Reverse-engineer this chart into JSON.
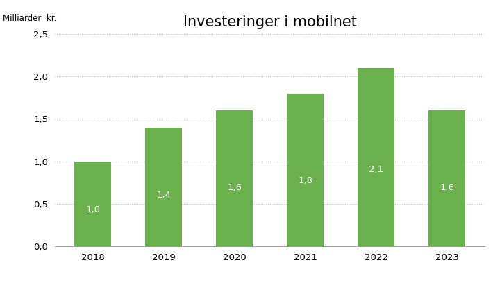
{
  "title": "Investeringer i mobilnet",
  "ylabel": "Milliarder  kr.",
  "categories": [
    "2018",
    "2019",
    "2020",
    "2021",
    "2022",
    "2023"
  ],
  "values": [
    1.0,
    1.4,
    1.6,
    1.8,
    2.1,
    1.6
  ],
  "labels": [
    "1,0",
    "1,4",
    "1,6",
    "1,8",
    "2,1",
    "1,6"
  ],
  "bar_color": "#6ab04c",
  "label_color": "#ffffff",
  "background_color": "#ffffff",
  "ylim": [
    0,
    2.5
  ],
  "yticks": [
    0.0,
    0.5,
    1.0,
    1.5,
    2.0,
    2.5
  ],
  "ytick_labels": [
    "0,0",
    "0,5",
    "1,0",
    "1,5",
    "2,0",
    "2,5"
  ],
  "title_fontsize": 15,
  "ylabel_fontsize": 8.5,
  "tick_fontsize": 9.5,
  "bar_label_fontsize": 9.5,
  "bar_width": 0.52
}
